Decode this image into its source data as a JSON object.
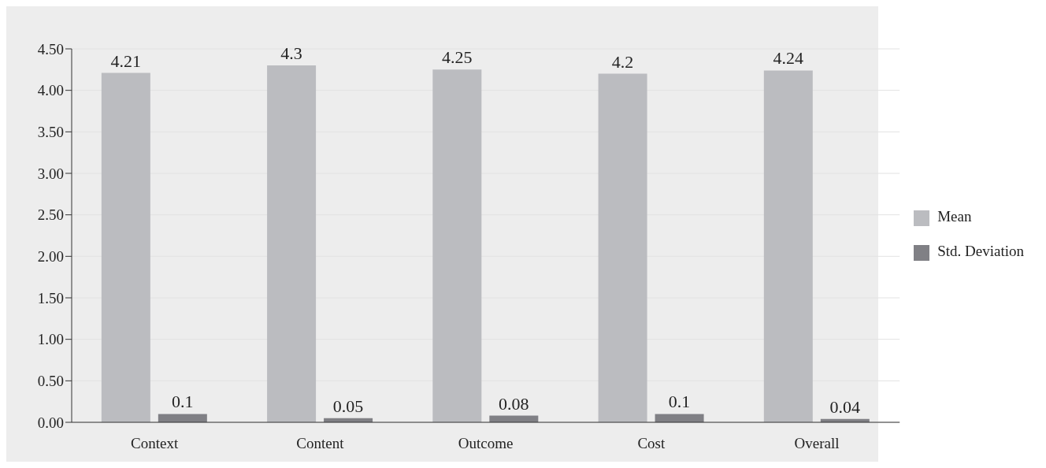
{
  "chart_data": {
    "type": "bar",
    "categories": [
      "Context",
      "Content",
      "Outcome",
      "Cost",
      "Overall"
    ],
    "series": [
      {
        "name": "Mean",
        "color": "#bbbcc0",
        "values": [
          4.21,
          4.3,
          4.25,
          4.2,
          4.24
        ]
      },
      {
        "name": "Std. Deviation",
        "color": "#808085",
        "values": [
          0.1,
          0.05,
          0.08,
          0.1,
          0.04
        ]
      }
    ],
    "ylim": [
      0,
      4.5
    ],
    "yticks": [
      {
        "value": 0,
        "label": "0.00"
      },
      {
        "value": 0.5,
        "label": "0.50"
      },
      {
        "value": 1,
        "label": "1.00"
      },
      {
        "value": 1.5,
        "label": "1.50"
      },
      {
        "value": 2,
        "label": "2.00"
      },
      {
        "value": 2.5,
        "label": "2.50"
      },
      {
        "value": 3,
        "label": "3.00"
      },
      {
        "value": 3.5,
        "label": "3.50"
      },
      {
        "value": 4,
        "label": "4.00"
      },
      {
        "value": 4.5,
        "label": "4.50"
      }
    ],
    "grid": "y",
    "legend": "right",
    "data_labels": true
  }
}
